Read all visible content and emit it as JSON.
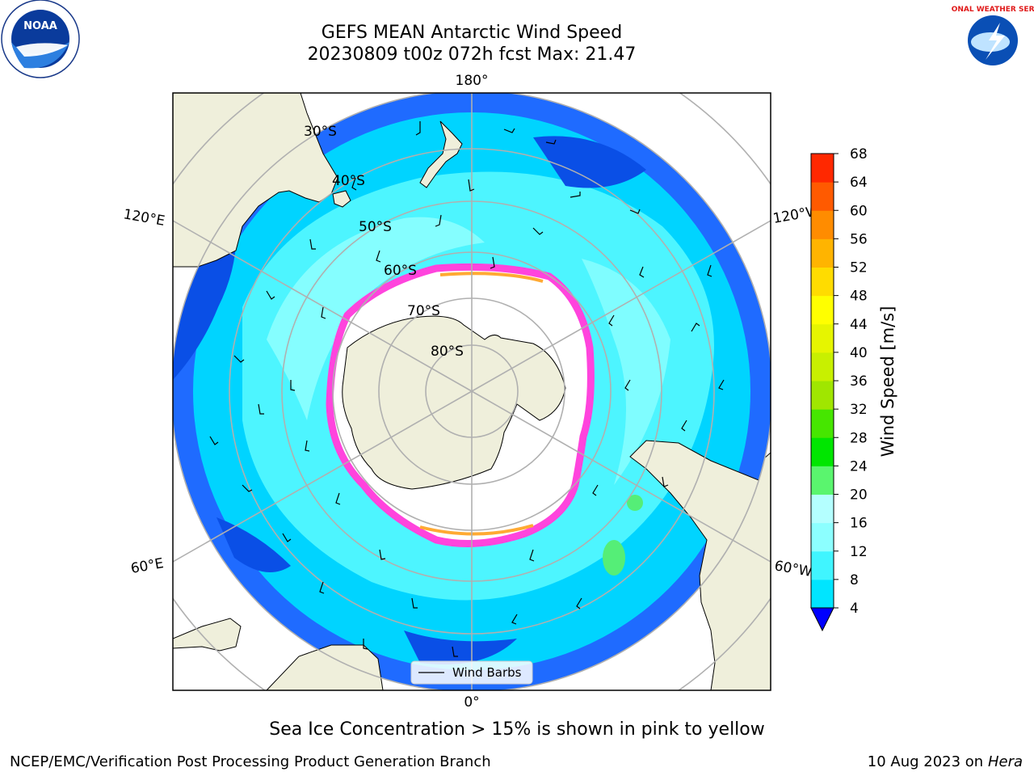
{
  "title": {
    "line1": "GEFS MEAN Antarctic Wind Speed",
    "line2": "20230809 t00z 072h fcst   Max: 21.47"
  },
  "logos": {
    "left": {
      "icon": "noaa-logo",
      "text": "NOAA"
    },
    "right": {
      "icon": "national-weather-service-logo",
      "text": "NATIONAL WEATHER SERVICE"
    }
  },
  "map": {
    "projection": "south-polar-stereographic",
    "meridian_labels": {
      "top": "180°",
      "bottom": "0°",
      "left_upper": "120°E",
      "left_lower": "60°E",
      "right_upper": "120°W",
      "right_lower": "60°W"
    },
    "latitude_labels": [
      "30°S",
      "40°S",
      "50°S",
      "60°S",
      "70°S",
      "80°S"
    ],
    "legend_label": "Wind Barbs",
    "colors": {
      "land": "#efefdb",
      "ocean_4_8": "#1f6bff",
      "ocean_8_12": "#00e1ff",
      "ocean_12_16": "#4dfaff",
      "ice_edge": "#ff4de1"
    }
  },
  "colorbar": {
    "label": "Wind Speed [m/s]",
    "ticks": [
      "4",
      "8",
      "12",
      "16",
      "20",
      "24",
      "28",
      "32",
      "36",
      "40",
      "44",
      "48",
      "52",
      "56",
      "60",
      "64",
      "68"
    ],
    "colors": [
      "#0050ff",
      "#00e5ff",
      "#40f5ff",
      "#8cffff",
      "#b4ffff",
      "#5af56e",
      "#00e600",
      "#46e600",
      "#a0e600",
      "#c8f000",
      "#e6f500",
      "#ffff00",
      "#ffdc00",
      "#ffb400",
      "#ff8c00",
      "#ff5a00",
      "#ff2800",
      "#ff0000"
    ],
    "under_color": "#0000ff"
  },
  "caption": "Sea Ice Concentration > 15% is shown in pink to yellow",
  "footer": {
    "left": "NCEP/EMC/Verification Post Processing Product Generation Branch",
    "date": "10 Aug 2023 on",
    "machine": "Hera"
  }
}
